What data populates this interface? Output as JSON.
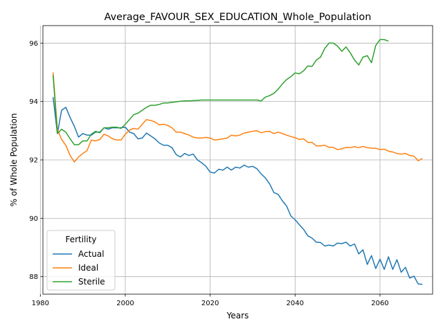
{
  "chart_data": {
    "type": "line",
    "title": "Average_FAVOUR_SEX_EDUCATION_Whole_Population",
    "xlabel": "Years",
    "ylabel": "% of Whole Population",
    "xlim": [
      1980.6,
      2072.4
    ],
    "ylim": [
      87.4,
      96.6
    ],
    "xticks": [
      1980,
      2000,
      2020,
      2040,
      2060
    ],
    "yticks": [
      88,
      90,
      92,
      94,
      96
    ],
    "grid": true,
    "legend": {
      "title": "Fertility",
      "placement": "lower-left"
    },
    "series": [
      {
        "name": "Actual",
        "color": "#1f77b4",
        "points": [
          [
            1983,
            94.15
          ],
          [
            1984,
            92.9
          ],
          [
            1985,
            93.7
          ],
          [
            1986,
            93.8
          ],
          [
            1987,
            93.45
          ],
          [
            1988,
            93.15
          ],
          [
            1989,
            92.78
          ],
          [
            1990,
            92.9
          ],
          [
            1991,
            92.85
          ],
          [
            1992,
            92.85
          ],
          [
            1993,
            92.95
          ],
          [
            1994,
            92.95
          ],
          [
            1995,
            93.1
          ],
          [
            1996,
            93.05
          ],
          [
            1997,
            93.1
          ],
          [
            1998,
            93.1
          ],
          [
            1999,
            93.1
          ],
          [
            2000,
            93.12
          ],
          [
            2001,
            92.95
          ],
          [
            2002,
            92.9
          ],
          [
            2003,
            92.72
          ],
          [
            2004,
            92.75
          ],
          [
            2005,
            92.92
          ],
          [
            2006,
            92.82
          ],
          [
            2007,
            92.72
          ],
          [
            2008,
            92.58
          ],
          [
            2009,
            92.5
          ],
          [
            2010,
            92.5
          ],
          [
            2011,
            92.42
          ],
          [
            2012,
            92.18
          ],
          [
            2013,
            92.1
          ],
          [
            2014,
            92.22
          ],
          [
            2015,
            92.15
          ],
          [
            2016,
            92.2
          ],
          [
            2017,
            92.0
          ],
          [
            2018,
            91.9
          ],
          [
            2019,
            91.78
          ],
          [
            2020,
            91.58
          ],
          [
            2021,
            91.55
          ],
          [
            2022,
            91.68
          ],
          [
            2023,
            91.65
          ],
          [
            2024,
            91.75
          ],
          [
            2025,
            91.65
          ],
          [
            2026,
            91.75
          ],
          [
            2027,
            91.72
          ],
          [
            2028,
            91.82
          ],
          [
            2029,
            91.75
          ],
          [
            2030,
            91.78
          ],
          [
            2031,
            91.7
          ],
          [
            2032,
            91.52
          ],
          [
            2033,
            91.38
          ],
          [
            2034,
            91.18
          ],
          [
            2035,
            90.88
          ],
          [
            2036,
            90.82
          ],
          [
            2037,
            90.6
          ],
          [
            2038,
            90.42
          ],
          [
            2039,
            90.08
          ],
          [
            2040,
            89.95
          ],
          [
            2041,
            89.78
          ],
          [
            2042,
            89.62
          ],
          [
            2043,
            89.4
          ],
          [
            2044,
            89.32
          ],
          [
            2045,
            89.18
          ],
          [
            2046,
            89.17
          ],
          [
            2047,
            89.05
          ],
          [
            2048,
            89.08
          ],
          [
            2049,
            89.05
          ],
          [
            2050,
            89.15
          ],
          [
            2051,
            89.13
          ],
          [
            2052,
            89.18
          ],
          [
            2053,
            89.05
          ],
          [
            2054,
            89.12
          ],
          [
            2055,
            88.78
          ],
          [
            2056,
            88.92
          ],
          [
            2057,
            88.42
          ],
          [
            2058,
            88.72
          ],
          [
            2059,
            88.28
          ],
          [
            2060,
            88.6
          ],
          [
            2061,
            88.25
          ],
          [
            2062,
            88.68
          ],
          [
            2063,
            88.25
          ],
          [
            2064,
            88.58
          ],
          [
            2065,
            88.15
          ],
          [
            2066,
            88.32
          ],
          [
            2067,
            87.95
          ],
          [
            2068,
            88.02
          ],
          [
            2069,
            87.75
          ],
          [
            2070,
            87.74
          ]
        ]
      },
      {
        "name": "Ideal",
        "color": "#ff7f0e",
        "points": [
          [
            1983,
            95.0
          ],
          [
            1984,
            93.05
          ],
          [
            1985,
            92.7
          ],
          [
            1986,
            92.5
          ],
          [
            1987,
            92.15
          ],
          [
            1988,
            91.93
          ],
          [
            1989,
            92.1
          ],
          [
            1990,
            92.22
          ],
          [
            1991,
            92.32
          ],
          [
            1992,
            92.68
          ],
          [
            1993,
            92.65
          ],
          [
            1994,
            92.7
          ],
          [
            1995,
            92.88
          ],
          [
            1996,
            92.82
          ],
          [
            1997,
            92.72
          ],
          [
            1998,
            92.68
          ],
          [
            1999,
            92.68
          ],
          [
            2000,
            92.88
          ],
          [
            2001,
            93.02
          ],
          [
            2002,
            93.08
          ],
          [
            2003,
            93.05
          ],
          [
            2004,
            93.22
          ],
          [
            2005,
            93.38
          ],
          [
            2006,
            93.35
          ],
          [
            2007,
            93.3
          ],
          [
            2008,
            93.2
          ],
          [
            2009,
            93.22
          ],
          [
            2010,
            93.18
          ],
          [
            2011,
            93.1
          ],
          [
            2012,
            92.95
          ],
          [
            2013,
            92.95
          ],
          [
            2014,
            92.9
          ],
          [
            2015,
            92.85
          ],
          [
            2016,
            92.78
          ],
          [
            2017,
            92.75
          ],
          [
            2018,
            92.75
          ],
          [
            2019,
            92.77
          ],
          [
            2020,
            92.75
          ],
          [
            2021,
            92.68
          ],
          [
            2022,
            92.7
          ],
          [
            2023,
            92.72
          ],
          [
            2024,
            92.75
          ],
          [
            2025,
            92.85
          ],
          [
            2026,
            92.82
          ],
          [
            2027,
            92.85
          ],
          [
            2028,
            92.92
          ],
          [
            2029,
            92.95
          ],
          [
            2030,
            92.98
          ],
          [
            2031,
            93.0
          ],
          [
            2032,
            92.93
          ],
          [
            2033,
            92.97
          ],
          [
            2034,
            92.98
          ],
          [
            2035,
            92.9
          ],
          [
            2036,
            92.95
          ],
          [
            2037,
            92.9
          ],
          [
            2038,
            92.85
          ],
          [
            2039,
            92.8
          ],
          [
            2040,
            92.76
          ],
          [
            2041,
            92.7
          ],
          [
            2042,
            92.72
          ],
          [
            2043,
            92.6
          ],
          [
            2044,
            92.6
          ],
          [
            2045,
            92.48
          ],
          [
            2046,
            92.48
          ],
          [
            2047,
            92.5
          ],
          [
            2048,
            92.43
          ],
          [
            2049,
            92.43
          ],
          [
            2050,
            92.35
          ],
          [
            2051,
            92.38
          ],
          [
            2052,
            92.43
          ],
          [
            2053,
            92.42
          ],
          [
            2054,
            92.45
          ],
          [
            2055,
            92.42
          ],
          [
            2056,
            92.46
          ],
          [
            2057,
            92.42
          ],
          [
            2058,
            92.4
          ],
          [
            2059,
            92.4
          ],
          [
            2060,
            92.35
          ],
          [
            2061,
            92.37
          ],
          [
            2062,
            92.3
          ],
          [
            2063,
            92.27
          ],
          [
            2064,
            92.22
          ],
          [
            2065,
            92.2
          ],
          [
            2066,
            92.22
          ],
          [
            2067,
            92.15
          ],
          [
            2068,
            92.13
          ],
          [
            2069,
            91.97
          ],
          [
            2070,
            92.05
          ]
        ]
      },
      {
        "name": "Sterile",
        "color": "#2ca02c",
        "points": [
          [
            1983,
            94.9
          ],
          [
            1984,
            92.9
          ],
          [
            1985,
            93.05
          ],
          [
            1986,
            92.95
          ],
          [
            1987,
            92.72
          ],
          [
            1988,
            92.52
          ],
          [
            1989,
            92.52
          ],
          [
            1990,
            92.65
          ],
          [
            1991,
            92.65
          ],
          [
            1992,
            92.88
          ],
          [
            1993,
            92.98
          ],
          [
            1994,
            92.93
          ],
          [
            1995,
            93.1
          ],
          [
            1996,
            93.1
          ],
          [
            1997,
            93.12
          ],
          [
            1998,
            93.12
          ],
          [
            1999,
            93.08
          ],
          [
            2000,
            93.22
          ],
          [
            2001,
            93.38
          ],
          [
            2002,
            93.55
          ],
          [
            2003,
            93.6
          ],
          [
            2004,
            93.7
          ],
          [
            2005,
            93.8
          ],
          [
            2006,
            93.87
          ],
          [
            2007,
            93.87
          ],
          [
            2008,
            93.9
          ],
          [
            2009,
            93.95
          ],
          [
            2010,
            93.95
          ],
          [
            2011,
            93.97
          ],
          [
            2012,
            93.99
          ],
          [
            2013,
            94.01
          ],
          [
            2014,
            94.02
          ],
          [
            2015,
            94.02
          ],
          [
            2016,
            94.03
          ],
          [
            2017,
            94.04
          ],
          [
            2018,
            94.05
          ],
          [
            2019,
            94.05
          ],
          [
            2020,
            94.05
          ],
          [
            2021,
            94.05
          ],
          [
            2022,
            94.05
          ],
          [
            2023,
            94.05
          ],
          [
            2024,
            94.05
          ],
          [
            2025,
            94.05
          ],
          [
            2026,
            94.05
          ],
          [
            2027,
            94.05
          ],
          [
            2028,
            94.05
          ],
          [
            2029,
            94.05
          ],
          [
            2030,
            94.05
          ],
          [
            2031,
            94.05
          ],
          [
            2032,
            94.02
          ],
          [
            2033,
            94.15
          ],
          [
            2034,
            94.2
          ],
          [
            2035,
            94.28
          ],
          [
            2036,
            94.42
          ],
          [
            2037,
            94.6
          ],
          [
            2038,
            94.75
          ],
          [
            2039,
            94.85
          ],
          [
            2040,
            94.98
          ],
          [
            2041,
            94.95
          ],
          [
            2042,
            95.05
          ],
          [
            2043,
            95.22
          ],
          [
            2044,
            95.2
          ],
          [
            2045,
            95.42
          ],
          [
            2046,
            95.52
          ],
          [
            2047,
            95.82
          ],
          [
            2048,
            96.0
          ],
          [
            2049,
            96.0
          ],
          [
            2050,
            95.9
          ],
          [
            2051,
            95.72
          ],
          [
            2052,
            95.87
          ],
          [
            2053,
            95.67
          ],
          [
            2054,
            95.42
          ],
          [
            2055,
            95.25
          ],
          [
            2056,
            95.52
          ],
          [
            2057,
            95.57
          ],
          [
            2058,
            95.33
          ],
          [
            2059,
            95.92
          ],
          [
            2060,
            96.12
          ],
          [
            2061,
            96.12
          ],
          [
            2062,
            96.07
          ]
        ]
      }
    ]
  }
}
